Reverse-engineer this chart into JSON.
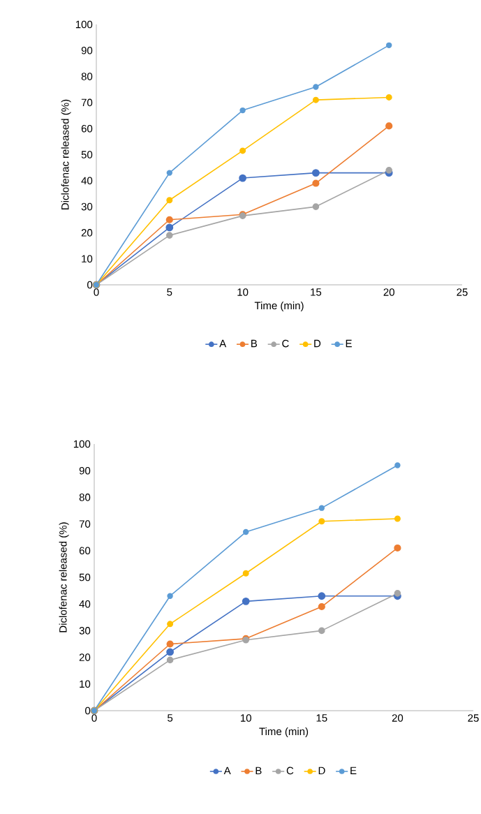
{
  "chart_data": [
    {
      "type": "line",
      "xlabel": "Time (min)",
      "ylabel": "Diclofenac released (%)",
      "x": [
        0,
        5,
        10,
        15,
        20
      ],
      "xlim": [
        0,
        25
      ],
      "xticks": [
        0,
        5,
        10,
        15,
        20,
        25
      ],
      "ylim": [
        0,
        100
      ],
      "yticks": [
        0,
        10,
        20,
        30,
        40,
        50,
        60,
        70,
        80,
        90,
        100
      ],
      "marker": "circle",
      "legend": "bottom",
      "series": [
        {
          "name": "A",
          "color": "#4472c4",
          "values": [
            0,
            22,
            41,
            43,
            43
          ]
        },
        {
          "name": "B",
          "color": "#ed7d31",
          "values": [
            0,
            25,
            27,
            39,
            61
          ]
        },
        {
          "name": "C",
          "color": "#a5a5a5",
          "values": [
            0,
            19,
            26.5,
            30,
            44
          ]
        },
        {
          "name": "D",
          "color": "#ffc000",
          "values": [
            0,
            32.5,
            51.5,
            71,
            72
          ]
        },
        {
          "name": "E",
          "color": "#5b9bd5",
          "values": [
            0,
            43,
            67,
            76,
            92
          ]
        }
      ]
    },
    {
      "type": "line",
      "xlabel": "Time (min)",
      "ylabel": "Diclofenac released (%)",
      "x": [
        0,
        5,
        10,
        15,
        20
      ],
      "xlim": [
        0,
        25
      ],
      "xticks": [
        0,
        5,
        10,
        15,
        20,
        25
      ],
      "ylim": [
        0,
        100
      ],
      "yticks": [
        0,
        10,
        20,
        30,
        40,
        50,
        60,
        70,
        80,
        90,
        100
      ],
      "marker": "circle",
      "legend": "bottom",
      "series": [
        {
          "name": "A",
          "color": "#4472c4",
          "values": [
            0,
            22,
            41,
            43,
            43
          ]
        },
        {
          "name": "B",
          "color": "#ed7d31",
          "values": [
            0,
            25,
            27,
            39,
            61
          ]
        },
        {
          "name": "C",
          "color": "#a5a5a5",
          "values": [
            0,
            19,
            26.5,
            30,
            44
          ]
        },
        {
          "name": "D",
          "color": "#ffc000",
          "values": [
            0,
            32.5,
            51.5,
            71,
            72
          ]
        },
        {
          "name": "E",
          "color": "#5b9bd5",
          "values": [
            0,
            43,
            67,
            76,
            92
          ]
        }
      ]
    }
  ]
}
